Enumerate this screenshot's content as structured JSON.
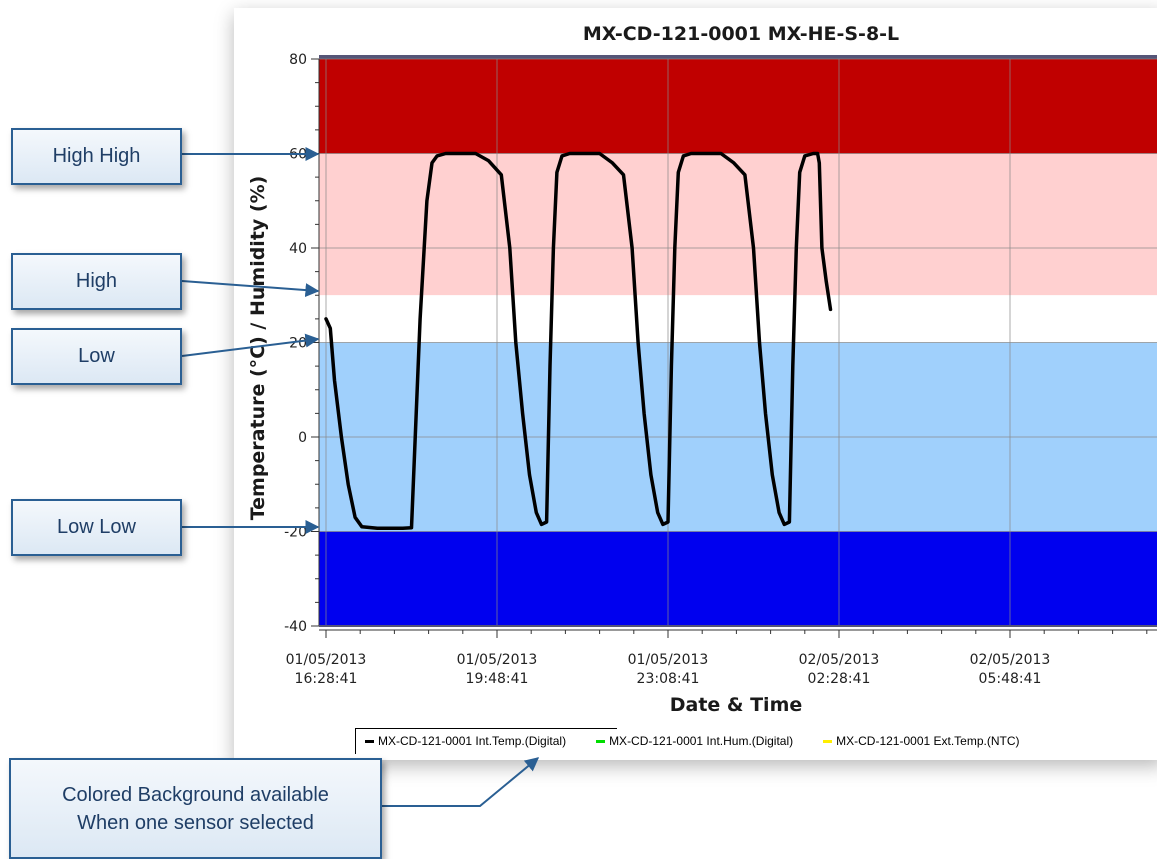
{
  "chart_data": {
    "type": "line",
    "title": "MX-CD-121-0001 MX-HE-S-8-L",
    "xlabel": "Date & Time",
    "ylabel": "Temperature (°C) / Humidity (%)",
    "ylim": [
      -40,
      80
    ],
    "y_ticks": [
      80,
      60,
      40,
      20,
      0,
      -20,
      -40
    ],
    "x_tick_labels": [
      {
        "date": "01/05/2013",
        "time": "16:28:41"
      },
      {
        "date": "01/05/2013",
        "time": "19:48:41"
      },
      {
        "date": "01/05/2013",
        "time": "23:08:41"
      },
      {
        "date": "02/05/2013",
        "time": "02:28:41"
      },
      {
        "date": "02/05/2013",
        "time": "05:48:41"
      }
    ],
    "x_range_minutes_from_first_tick": [
      -5,
      975
    ],
    "background_bands": [
      {
        "from": 60,
        "to": 80,
        "color": "#c00000"
      },
      {
        "from": 30,
        "to": 60,
        "color": "#ffd0d0"
      },
      {
        "from": 20,
        "to": 30,
        "color": "#ffffff"
      },
      {
        "from": -20,
        "to": 20,
        "color": "#a0d0fc"
      },
      {
        "from": -40,
        "to": -20,
        "color": "#0000ef"
      }
    ],
    "grid": true,
    "legend_position": "bottom",
    "legend": [
      {
        "label": "MX-CD-121-0001 Int.Temp.(Digital)",
        "color": "#000000"
      },
      {
        "label": "MX-CD-121-0001 Int.Hum.(Digital)",
        "color": "#00dd00"
      },
      {
        "label": "MX-CD-121-0001 Ext.Temp.(NTC)",
        "color": "#ffee00"
      }
    ],
    "series": [
      {
        "name": "MX-CD-121-0001 Int.Temp.(Digital)",
        "color": "#000000",
        "points": [
          [
            0,
            25
          ],
          [
            5,
            23
          ],
          [
            10,
            12
          ],
          [
            18,
            0
          ],
          [
            26,
            -10
          ],
          [
            34,
            -17
          ],
          [
            42,
            -19
          ],
          [
            60,
            -19.3
          ],
          [
            80,
            -19.3
          ],
          [
            90,
            -19.3
          ],
          [
            100,
            -19.2
          ],
          [
            110,
            25
          ],
          [
            118,
            50
          ],
          [
            124,
            58
          ],
          [
            130,
            59.5
          ],
          [
            140,
            60
          ],
          [
            175,
            60
          ],
          [
            190,
            58.5
          ],
          [
            205,
            55.5
          ],
          [
            215,
            40
          ],
          [
            222,
            20
          ],
          [
            230,
            5
          ],
          [
            238,
            -8
          ],
          [
            246,
            -16
          ],
          [
            252,
            -18.5
          ],
          [
            258,
            -18
          ],
          [
            262,
            15
          ],
          [
            266,
            40
          ],
          [
            270,
            56
          ],
          [
            276,
            59.5
          ],
          [
            285,
            60
          ],
          [
            320,
            60
          ],
          [
            335,
            58
          ],
          [
            348,
            55.5
          ],
          [
            358,
            40
          ],
          [
            365,
            20
          ],
          [
            372,
            5
          ],
          [
            380,
            -8
          ],
          [
            388,
            -16
          ],
          [
            394,
            -18.5
          ],
          [
            400,
            -18
          ],
          [
            404,
            15
          ],
          [
            408,
            40
          ],
          [
            412,
            56
          ],
          [
            418,
            59.5
          ],
          [
            427,
            60
          ],
          [
            462,
            60
          ],
          [
            477,
            58
          ],
          [
            490,
            55.5
          ],
          [
            500,
            40
          ],
          [
            507,
            20
          ],
          [
            514,
            5
          ],
          [
            522,
            -8
          ],
          [
            530,
            -16
          ],
          [
            536,
            -18.5
          ],
          [
            542,
            -18
          ],
          [
            546,
            15
          ],
          [
            550,
            40
          ],
          [
            554,
            56
          ],
          [
            560,
            59.5
          ],
          [
            570,
            60
          ],
          [
            575,
            60
          ],
          [
            577,
            58
          ],
          [
            580,
            40
          ],
          [
            585,
            33
          ],
          [
            590,
            27
          ]
        ]
      }
    ]
  },
  "annotations": {
    "high_high": "High High",
    "high": "High",
    "low": "Low",
    "low_low": "Low Low",
    "note_line1": "Colored Background available",
    "note_line2": "When one sensor selected"
  }
}
